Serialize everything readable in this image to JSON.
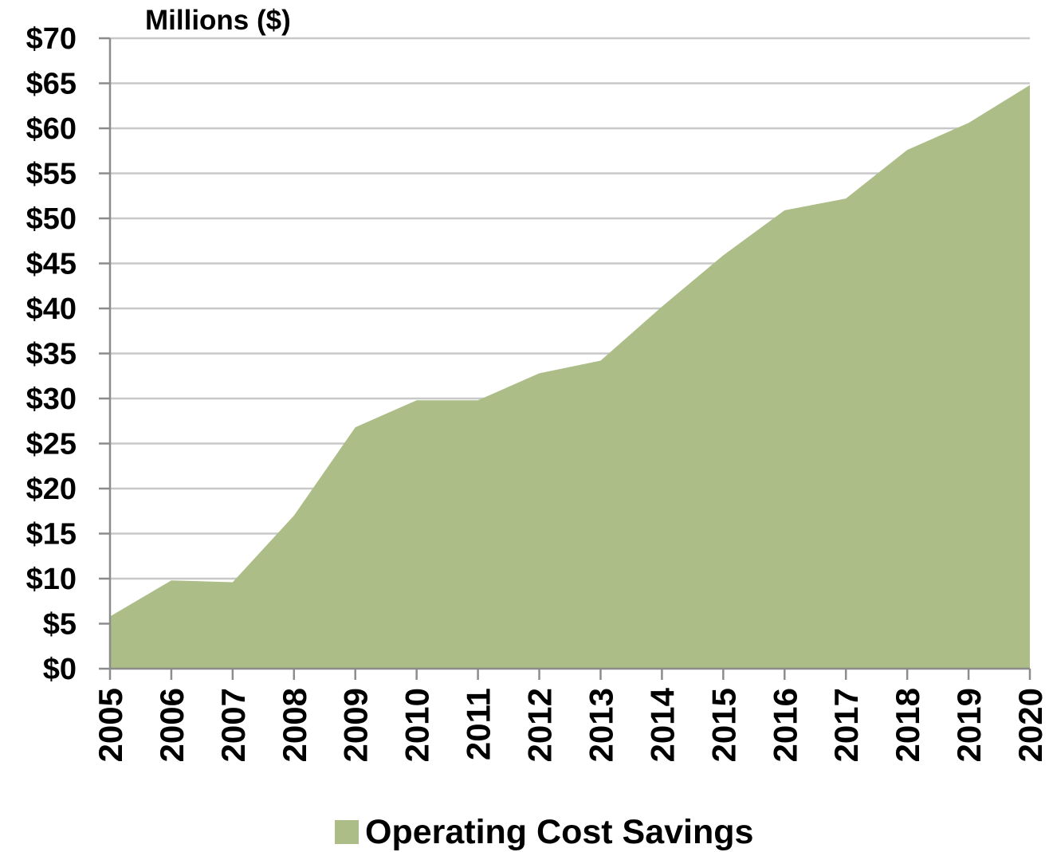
{
  "chart_data": {
    "type": "area",
    "title": "",
    "ylabel": "Millions ($)",
    "xlabel": "",
    "x": [
      "2005",
      "2006",
      "2007",
      "2008",
      "2009",
      "2010",
      "2011",
      "2012",
      "2013",
      "2014",
      "2015",
      "2016",
      "2017",
      "2018",
      "2019",
      "2020"
    ],
    "series": [
      {
        "name": "Operating Cost Savings",
        "values": [
          5.8,
          9.8,
          9.6,
          17.0,
          26.8,
          29.8,
          29.8,
          32.8,
          34.2,
          40.2,
          45.9,
          50.9,
          52.2,
          57.6,
          60.6,
          64.8
        ]
      }
    ],
    "ylim": [
      0,
      70
    ],
    "yticks": [
      0,
      5,
      10,
      15,
      20,
      25,
      30,
      35,
      40,
      45,
      50,
      55,
      60,
      65,
      70
    ],
    "ytick_labels": [
      "$0",
      "$5",
      "$10",
      "$15",
      "$20",
      "$25",
      "$30",
      "$35",
      "$40",
      "$45",
      "$50",
      "$55",
      "$60",
      "$65",
      "$70"
    ],
    "grid": "horizontal",
    "legend": "bottom",
    "colors": {
      "fill": "#acbd87",
      "grid": "#c8c8c8",
      "axis": "#8c8c8c"
    }
  }
}
